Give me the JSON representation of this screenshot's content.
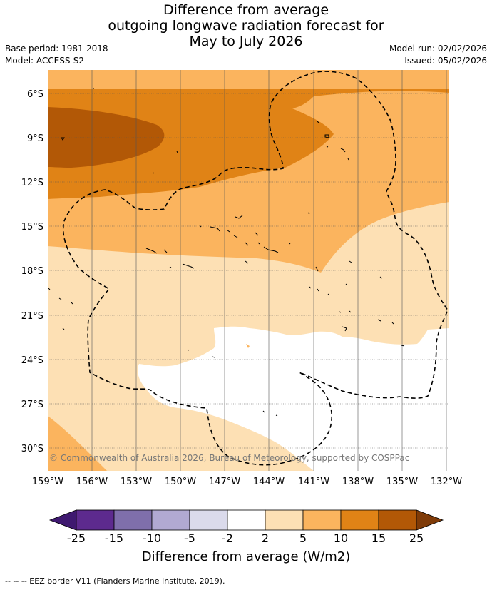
{
  "title": {
    "line1": "Difference from average",
    "line2": "outgoing longwave radiation forecast for",
    "line3": "May to July 2026"
  },
  "meta": {
    "base_period": "Base period: 1981-2018",
    "model": "Model: ACCESS-S2",
    "model_run": "Model run: 02/02/2026",
    "issued": "Issued: 05/02/2026"
  },
  "map": {
    "lat_labels": [
      "6°S",
      "9°S",
      "12°S",
      "15°S",
      "18°S",
      "21°S",
      "24°S",
      "27°S",
      "30°S"
    ],
    "lon_labels": [
      "159°W",
      "156°W",
      "153°W",
      "150°W",
      "147°W",
      "144°W",
      "141°W",
      "138°W",
      "135°W",
      "132°W"
    ],
    "copyright": "© Commonwealth of Australia 2026, Bureau of Meteorology, supported by COSPPac"
  },
  "colorbar": {
    "ticks": [
      "-25",
      "-15",
      "-10",
      "-5",
      "-2",
      "2",
      "5",
      "10",
      "15",
      "25"
    ],
    "colors": [
      "#3f1970",
      "#5d2a8e",
      "#7f6fab",
      "#b1a9d2",
      "#dadaeb",
      "#ffffff",
      "#fde0b4",
      "#fbb45e",
      "#e08316",
      "#b25806",
      "#7f3b08"
    ],
    "title": "Difference from average (W/m2)"
  },
  "legend": {
    "eez": "--  --  -- EEZ border V11 (Flanders Marine Institute, 2019)."
  }
}
